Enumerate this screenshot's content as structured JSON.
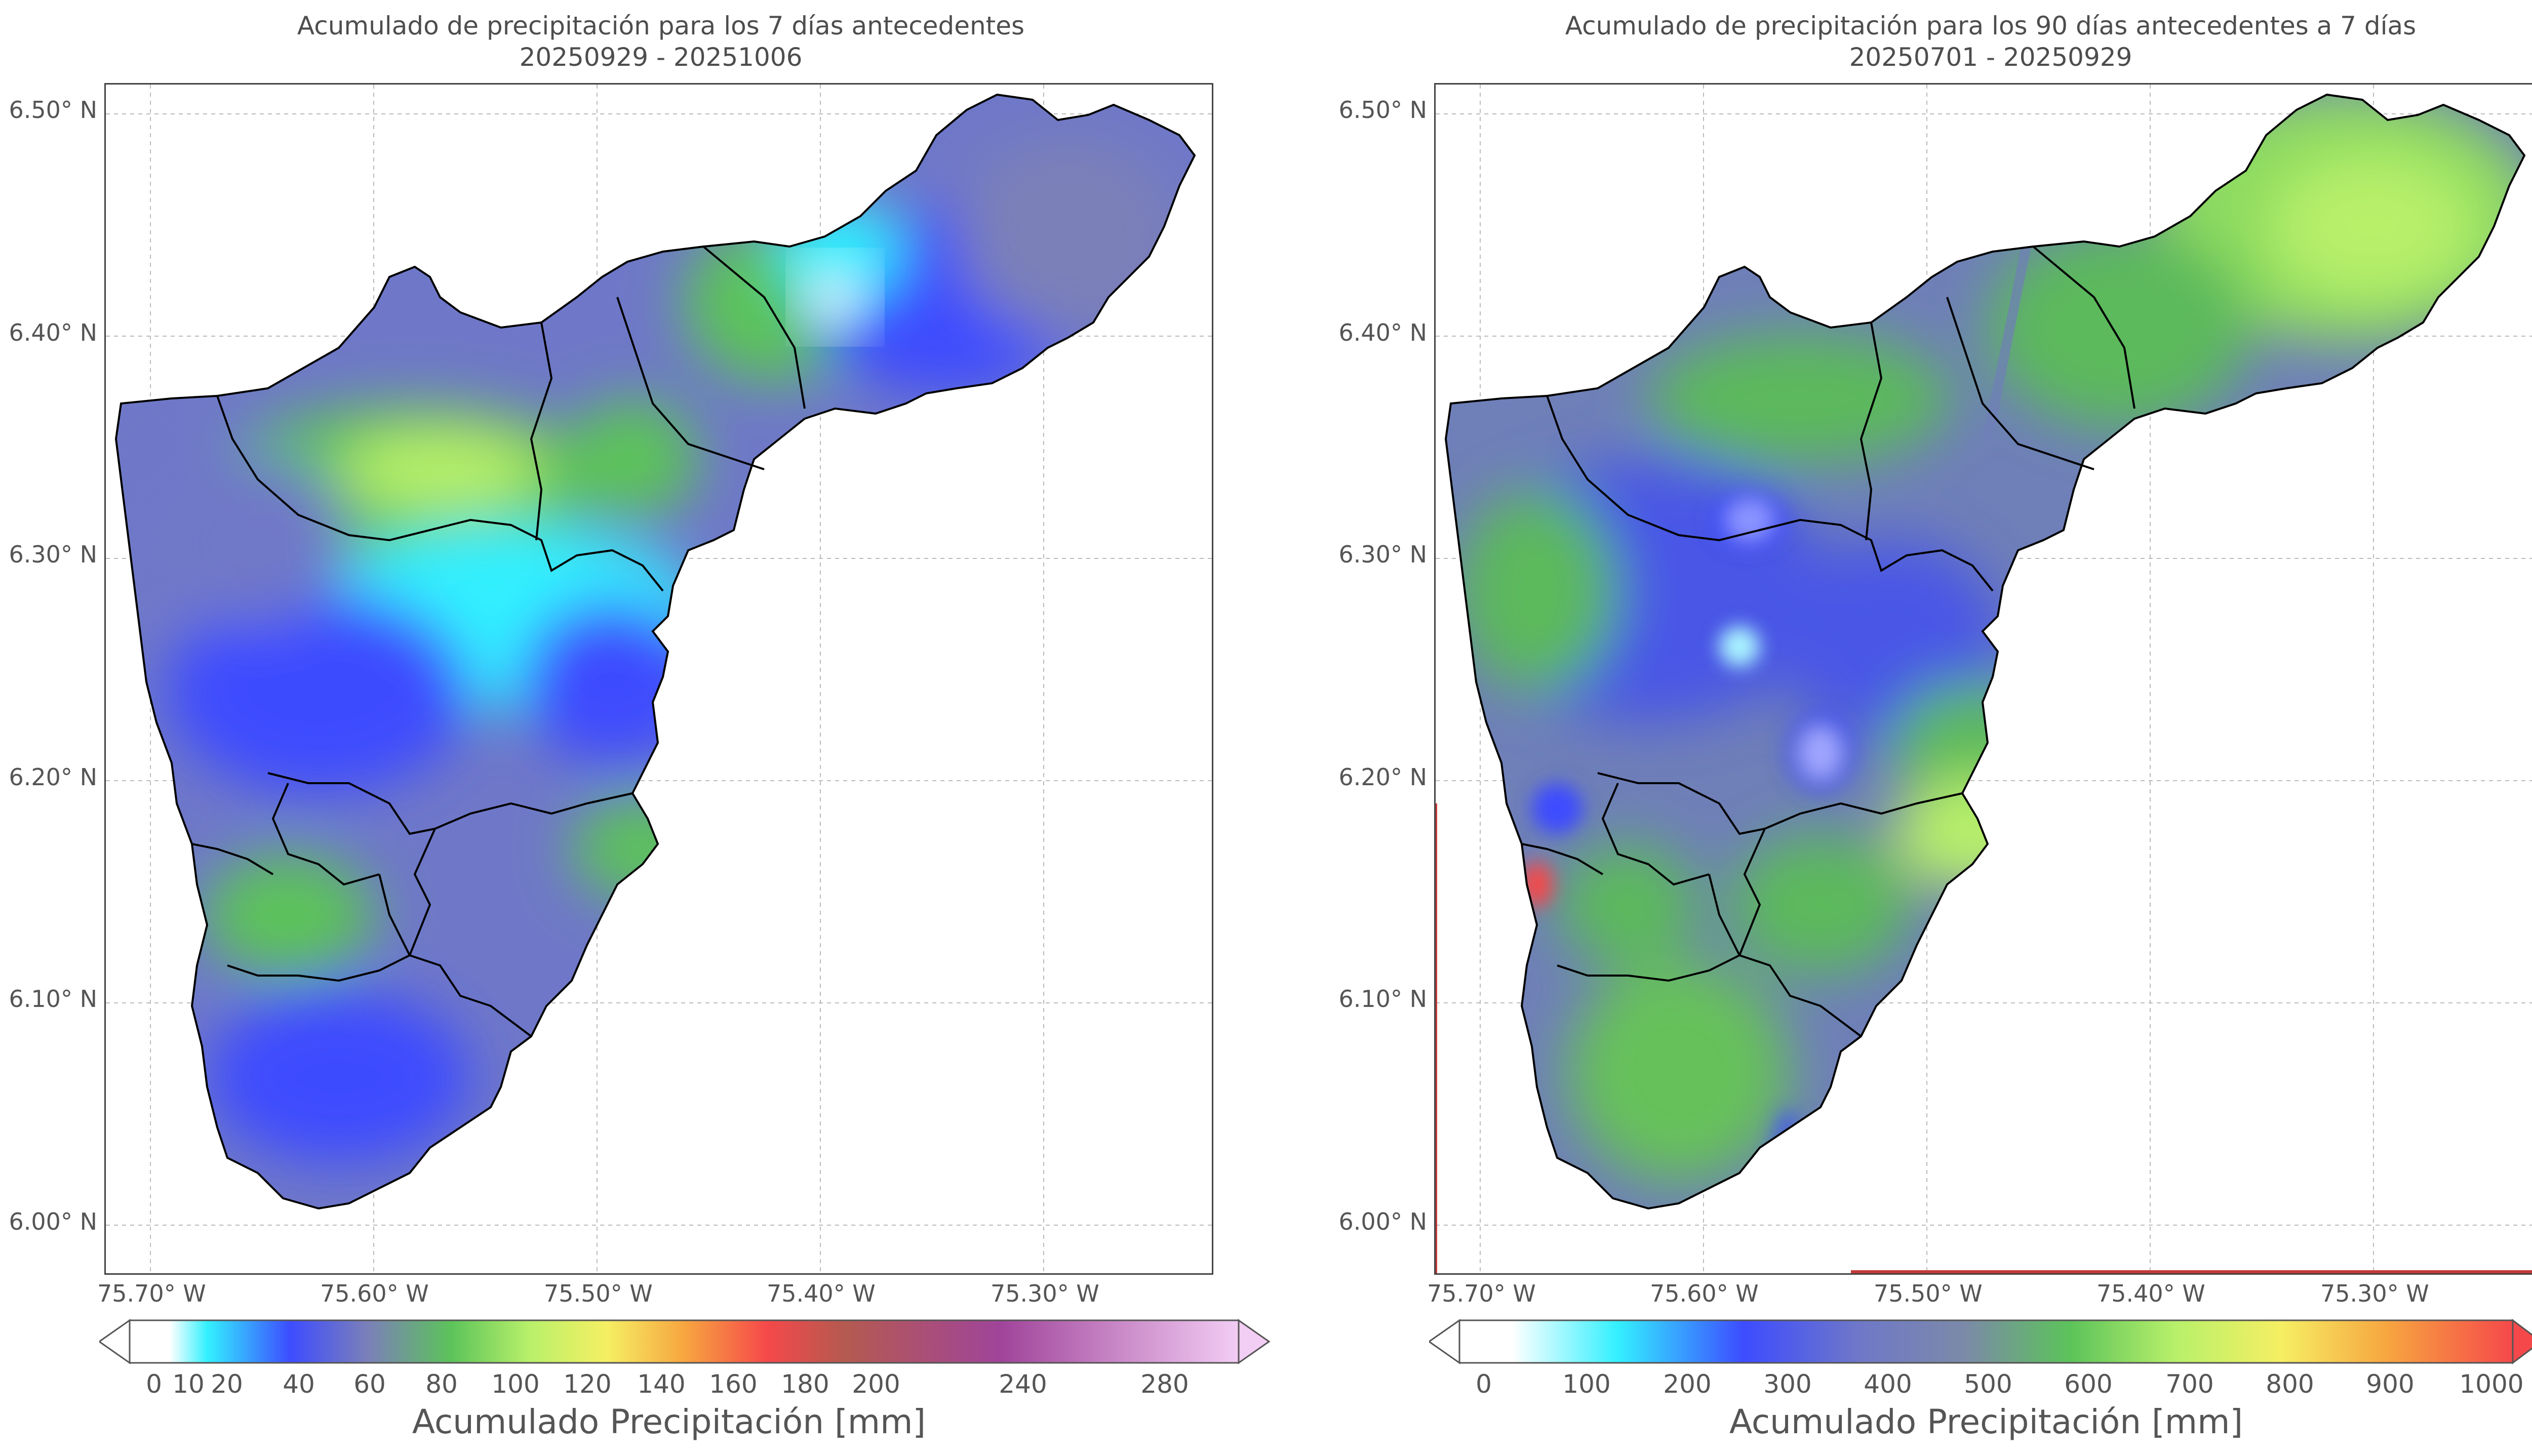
{
  "left_map": {
    "title_line1": "Acumulado de precipitación para los 7 días antecedentes",
    "title_line2": "20250929 - 20251006",
    "x_ticks": [
      "75.70° W",
      "75.60° W",
      "75.50° W",
      "75.40° W",
      "75.30° W"
    ],
    "y_ticks": [
      "6.50° N",
      "6.40° N",
      "6.30° N",
      "6.20° N",
      "6.10° N",
      "6.00° N"
    ],
    "colorbar": {
      "ticks": [
        "0",
        "10",
        "20",
        "40",
        "60",
        "80",
        "100",
        "120",
        "140",
        "160",
        "180",
        "200",
        "240",
        "280"
      ],
      "label": "Acumulado Precipitación [mm]"
    }
  },
  "right_map": {
    "title_line1": "Acumulado de precipitación para los 90 días antecedentes a 7 días",
    "title_line2": "20250701 - 20250929",
    "x_ticks": [
      "75.70° W",
      "75.60° W",
      "75.50° W",
      "75.40° W",
      "75.30° W"
    ],
    "y_ticks": [
      "6.50° N",
      "6.40° N",
      "6.30° N",
      "6.20° N",
      "6.10° N",
      "6.00° N"
    ],
    "colorbar": {
      "ticks": [
        "0",
        "100",
        "200",
        "300",
        "400",
        "500",
        "600",
        "700",
        "800",
        "900",
        "1000"
      ],
      "label": "Acumulado Precipitación [mm]"
    }
  },
  "colors": {
    "cyan": "#33f0ff",
    "blue": "#3d4cff",
    "slate": "#7b80b8",
    "green": "#5cc35a",
    "lime": "#b8f06a",
    "yellow": "#f5ef63",
    "orange": "#f7a640",
    "red": "#f5484a",
    "magenta": "#a0449a",
    "pink": "#f2cdf4"
  }
}
